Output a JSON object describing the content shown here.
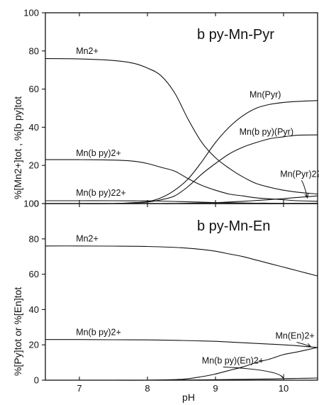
{
  "chart_data": [
    {
      "type": "line",
      "title": "b py-Mn-Pyr",
      "xlabel": "pH",
      "ylabel": "%[Mn2+]tot , %[b py]tot",
      "xlim": [
        6.5,
        10.5
      ],
      "ylim": [
        0,
        100
      ],
      "x_ticks": [
        "7",
        "8",
        "9",
        "10"
      ],
      "y_ticks": [
        "0",
        "20",
        "40",
        "60",
        "80",
        "100"
      ],
      "grid": false,
      "legend": "none",
      "x": [
        6.5,
        7.0,
        7.5,
        7.8,
        8.0,
        8.2,
        8.4,
        8.6,
        8.8,
        9.0,
        9.2,
        9.4,
        9.6,
        9.8,
        10.0,
        10.2,
        10.5
      ],
      "series": [
        {
          "name": "Mn2+",
          "label_position": [
            6.95,
            78.5
          ],
          "arrow": false,
          "values": [
            76,
            75.8,
            75,
            73.5,
            71,
            67,
            58,
            44,
            32,
            24,
            18.5,
            14,
            10.5,
            8.5,
            7,
            6,
            5
          ]
        },
        {
          "name": "Mn(Pyr)",
          "label_position": [
            9.5,
            55.5
          ],
          "arrow": false,
          "values": [
            0,
            0,
            0,
            0.5,
            1,
            3,
            7,
            13,
            22,
            32,
            40,
            46,
            50,
            52,
            53,
            53.5,
            54
          ]
        },
        {
          "name": "Mn(b py)(Pyr)",
          "label_position": [
            9.35,
            36
          ],
          "arrow": false,
          "values": [
            0,
            0,
            0,
            0.3,
            0.8,
            2,
            4,
            9,
            15.5,
            21,
            26,
            29.5,
            32,
            34,
            35,
            35.8,
            36
          ]
        },
        {
          "name": "Mn(b py)2+",
          "label_position": [
            6.95,
            25
          ],
          "arrow": false,
          "values": [
            23,
            23,
            22.8,
            22.2,
            21,
            19,
            17,
            13,
            9.5,
            7,
            5,
            4,
            3,
            2.5,
            2,
            1.5,
            1.2
          ]
        },
        {
          "name": "Mn(Pyr)22-",
          "label_position": [
            9.95,
            14
          ],
          "arrow": true,
          "arrow_target": [
            10.35,
            3
          ],
          "values": [
            0,
            0,
            0,
            0,
            0,
            0,
            0,
            0.2,
            0.3,
            0.5,
            0.8,
            1.2,
            1.6,
            2.1,
            2.6,
            3.2,
            4
          ]
        },
        {
          "name": "Mn(b py)22+",
          "label_position": [
            6.95,
            4
          ],
          "arrow": false,
          "values": [
            1.5,
            1.5,
            1.5,
            1.4,
            1.4,
            1.3,
            1.1,
            0.9,
            0.7,
            0.5,
            0.4,
            0.3,
            0.2,
            0.2,
            0.1,
            0.1,
            0.1
          ]
        }
      ]
    },
    {
      "type": "line",
      "title": "b py-Mn-En",
      "xlabel": "pH",
      "ylabel": "%[Py]tot or %[En]tot",
      "xlim": [
        6.5,
        10.5
      ],
      "ylim": [
        0,
        100
      ],
      "x_ticks": [
        "7",
        "8",
        "9",
        "10"
      ],
      "y_ticks": [
        "0",
        "20",
        "40",
        "60",
        "80",
        "100"
      ],
      "grid": false,
      "legend": "none",
      "x": [
        6.5,
        7.0,
        7.5,
        8.0,
        8.5,
        8.8,
        9.0,
        9.2,
        9.4,
        9.6,
        9.8,
        10.0,
        10.2,
        10.5
      ],
      "series": [
        {
          "name": "Mn2+",
          "label_position": [
            6.95,
            78.5
          ],
          "arrow": false,
          "values": [
            76,
            76,
            75.9,
            75.7,
            75,
            74,
            73,
            71.5,
            70,
            68,
            66,
            64,
            62,
            59
          ]
        },
        {
          "name": "Mn(b py)2+",
          "label_position": [
            6.95,
            25.5
          ],
          "arrow": false,
          "values": [
            23,
            23,
            22.9,
            22.8,
            22.5,
            22.2,
            22,
            21.6,
            21.2,
            20.8,
            20.4,
            20,
            19.5,
            18.5
          ]
        },
        {
          "name": "Mn(En)2+",
          "label_position": [
            9.88,
            23.5
          ],
          "arrow": true,
          "arrow_target": [
            10.4,
            19
          ],
          "values": [
            0,
            0,
            0,
            0,
            0.5,
            2,
            3.5,
            5.5,
            7.5,
            10,
            12,
            14.5,
            16,
            18.5
          ]
        },
        {
          "name": "Mn(b py)(En)2+",
          "label_position": [
            8.8,
            9.5
          ],
          "arrow": true,
          "arrow_target": [
            10.0,
            1
          ],
          "values": [
            0,
            0,
            0,
            0,
            0.1,
            0.2,
            0.3,
            0.4,
            0.5,
            0.6,
            0.7,
            0.9,
            1.0,
            1.2
          ]
        }
      ]
    }
  ]
}
